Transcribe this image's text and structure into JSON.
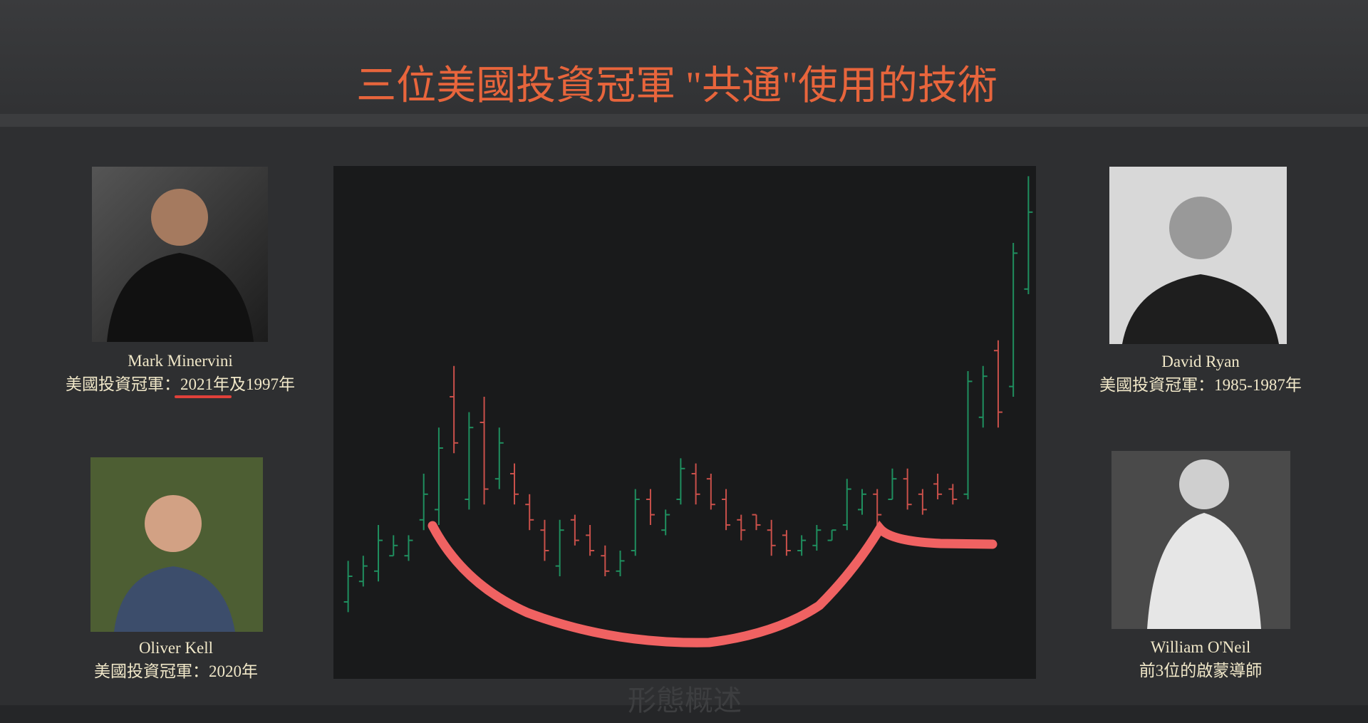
{
  "title": "三位美國投資冠軍 \"共通\"使用的技術",
  "people": [
    {
      "name": "Mark Minervini",
      "caption": "美國投資冠軍：2021年及1997年"
    },
    {
      "name": "Oliver Kell",
      "caption": "美國投資冠軍：2020年"
    },
    {
      "name": "David Ryan",
      "caption": "美國投資冠軍：1985-1987年"
    },
    {
      "name": "William O'Neil",
      "caption": "前3位的啟蒙導師"
    }
  ],
  "footer": "形態概述",
  "chart_data": {
    "type": "ohlc",
    "ylim": [
      0,
      100
    ],
    "up_color": "#1f8f5f",
    "down_color": "#c9504a",
    "open": [
      15,
      19,
      21,
      24,
      24,
      31,
      33,
      55,
      35,
      50,
      39,
      40,
      34,
      29,
      22,
      31,
      28,
      24,
      21,
      25,
      35,
      29,
      35,
      40,
      39,
      35,
      31,
      32,
      29,
      28,
      25,
      26,
      27,
      30,
      33,
      36,
      35,
      39,
      36,
      38,
      37,
      36,
      51,
      64,
      57,
      76
    ],
    "high": [
      23,
      24,
      30,
      28,
      28,
      40,
      49,
      61,
      52,
      55,
      49,
      42,
      36,
      31,
      31,
      32,
      30,
      26,
      25,
      37,
      37,
      33,
      43,
      42,
      40,
      37,
      32,
      32,
      31,
      29,
      28,
      30,
      29,
      39,
      37,
      37,
      41,
      41,
      37,
      40,
      38,
      60,
      61,
      66,
      85,
      98
    ],
    "low": [
      13,
      18,
      19,
      24,
      23,
      29,
      30,
      44,
      33,
      34,
      37,
      34,
      29,
      23,
      20,
      26,
      24,
      20,
      20,
      24,
      30,
      28,
      34,
      34,
      33,
      29,
      27,
      29,
      24,
      24,
      24,
      25,
      27,
      29,
      32,
      30,
      35,
      33,
      32,
      35,
      34,
      35,
      49,
      49,
      55,
      75
    ],
    "close": [
      20,
      22,
      27,
      26,
      27,
      36,
      45,
      46,
      49,
      37,
      46,
      36,
      31,
      25,
      29,
      27,
      25,
      21,
      23,
      35,
      32,
      32,
      41,
      36,
      34,
      30,
      29,
      30,
      26,
      25,
      27,
      29,
      29,
      37,
      36,
      32,
      39,
      34,
      33,
      36,
      35,
      58,
      59,
      52,
      83,
      91
    ]
  }
}
